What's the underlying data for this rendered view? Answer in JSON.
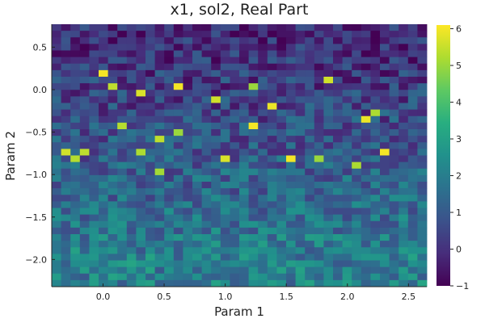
{
  "chart_data": {
    "type": "heatmap",
    "title": "x1, sol2, Real Part",
    "xlabel": "Param 1",
    "ylabel": "Param 2",
    "xlim": [
      -0.42,
      2.65
    ],
    "ylim": [
      -2.32,
      0.77
    ],
    "xticks": [
      0.0,
      0.5,
      1.0,
      1.5,
      2.0,
      2.5
    ],
    "xtick_labels": [
      "0.0",
      "0.5",
      "1.0",
      "1.5",
      "2.0",
      "2.5"
    ],
    "yticks": [
      0.5,
      0.0,
      -0.5,
      -1.0,
      -1.5,
      -2.0
    ],
    "ytick_labels": [
      "0.5",
      "0.0",
      "−0.5",
      "−1.0",
      "−1.5",
      "−2.0"
    ],
    "colorbar": {
      "colormap": "viridis",
      "min": -1,
      "max": 6.1,
      "ticks": [
        6,
        5,
        4,
        3,
        2,
        1,
        0,
        -1
      ],
      "tick_labels": [
        "6",
        "5",
        "4",
        "3",
        "2",
        "1",
        "0",
        "−1"
      ]
    },
    "grid": {
      "cols": 40,
      "rows": 40
    },
    "bright_cells": [
      {
        "x": 0.0,
        "y": 0.2,
        "value": 6.0
      },
      {
        "x": 0.08,
        "y": 0.05,
        "value": 5.4
      },
      {
        "x": 0.3,
        "y": -0.05,
        "value": 5.7
      },
      {
        "x": 0.62,
        "y": 0.05,
        "value": 6.0
      },
      {
        "x": 0.92,
        "y": -0.1,
        "value": 5.6
      },
      {
        "x": 1.22,
        "y": 0.05,
        "value": 5.0
      },
      {
        "x": 1.37,
        "y": -0.2,
        "value": 5.9
      },
      {
        "x": 1.25,
        "y": -0.42,
        "value": 6.0
      },
      {
        "x": 1.85,
        "y": 0.12,
        "value": 5.6
      },
      {
        "x": 2.15,
        "y": -0.38,
        "value": 5.9
      },
      {
        "x": 2.2,
        "y": -0.28,
        "value": 5.2
      },
      {
        "x": 0.15,
        "y": -0.42,
        "value": 5.3
      },
      {
        "x": 0.46,
        "y": -0.6,
        "value": 5.4
      },
      {
        "x": 0.6,
        "y": -0.52,
        "value": 5.0
      },
      {
        "x": 1.55,
        "y": -0.82,
        "value": 6.0
      },
      {
        "x": 2.3,
        "y": -0.72,
        "value": 6.0
      },
      {
        "x": -0.3,
        "y": -0.72,
        "value": 5.6
      },
      {
        "x": -0.15,
        "y": -0.72,
        "value": 5.4
      },
      {
        "x": 0.3,
        "y": -0.72,
        "value": 5.2
      },
      {
        "x": -0.25,
        "y": -0.85,
        "value": 5.3
      },
      {
        "x": 1.02,
        "y": -0.85,
        "value": 5.7
      },
      {
        "x": 1.78,
        "y": -0.85,
        "value": 5.0
      },
      {
        "x": 0.45,
        "y": -0.95,
        "value": 5.1
      },
      {
        "x": 2.1,
        "y": -0.9,
        "value": 5.2
      }
    ]
  }
}
